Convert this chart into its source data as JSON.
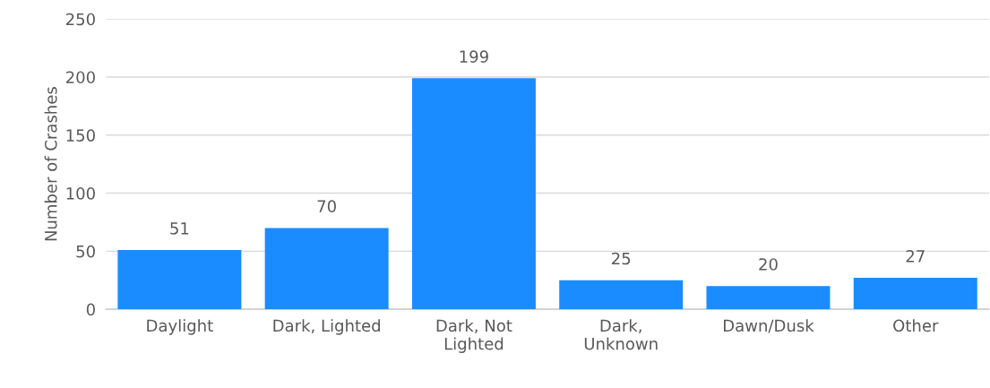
{
  "chart_data": {
    "type": "bar",
    "ylabel": "Number of Crashes",
    "categories": [
      "Daylight",
      "Dark, Lighted",
      "Dark, Not\nLighted",
      "Dark,\nUnknown",
      "Dawn/Dusk",
      "Other"
    ],
    "values": [
      51,
      70,
      199,
      25,
      20,
      27
    ],
    "color": "#1a8cff",
    "ylim": [
      0,
      250
    ],
    "yticks": [
      0,
      50,
      100,
      150,
      200,
      250
    ],
    "grid": "y",
    "data_labels": true
  }
}
